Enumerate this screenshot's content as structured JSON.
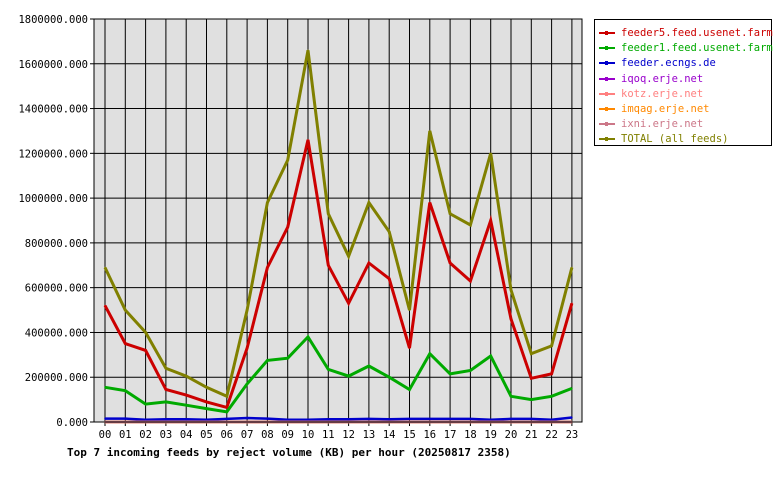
{
  "chart_data": {
    "type": "line",
    "title": "Top 7 incoming feeds by reject volume (KB) per hour (20250817 2358)",
    "categories": [
      "00",
      "01",
      "02",
      "03",
      "04",
      "05",
      "06",
      "07",
      "08",
      "09",
      "10",
      "11",
      "12",
      "13",
      "14",
      "15",
      "16",
      "17",
      "18",
      "19",
      "20",
      "21",
      "22",
      "23"
    ],
    "ylim": [
      0,
      1800000
    ],
    "yticks": [
      "0.000",
      "200000.000",
      "400000.000",
      "600000.000",
      "800000.000",
      "1000000.000",
      "1200000.000",
      "1400000.000",
      "1600000.000",
      "1800000.000"
    ],
    "grid": true,
    "legend_position": "right",
    "series": [
      {
        "name": "feeder5.feed.usenet.farm",
        "color": "#cc0000",
        "values": [
          520000,
          350000,
          320000,
          145000,
          120000,
          90000,
          65000,
          330000,
          690000,
          870000,
          1260000,
          700000,
          530000,
          710000,
          640000,
          330000,
          980000,
          710000,
          630000,
          900000,
          460000,
          195000,
          215000,
          530000
        ]
      },
      {
        "name": "feeder1.feed.usenet.farm",
        "color": "#00aa00",
        "values": [
          155000,
          140000,
          80000,
          90000,
          75000,
          60000,
          45000,
          170000,
          275000,
          285000,
          380000,
          235000,
          205000,
          250000,
          200000,
          145000,
          305000,
          215000,
          230000,
          295000,
          115000,
          100000,
          115000,
          150000
        ]
      },
      {
        "name": "feeder.ecngs.de",
        "color": "#0000cc",
        "values": [
          15000,
          15000,
          10000,
          12000,
          12000,
          10000,
          14000,
          18000,
          15000,
          10000,
          10000,
          12000,
          12000,
          14000,
          12000,
          14000,
          14000,
          14000,
          14000,
          10000,
          14000,
          14000,
          10000,
          20000
        ]
      },
      {
        "name": "iqoq.erje.net",
        "color": "#9900cc",
        "values": [
          0,
          0,
          0,
          0,
          0,
          0,
          0,
          0,
          0,
          0,
          0,
          0,
          0,
          0,
          0,
          0,
          0,
          0,
          0,
          0,
          0,
          0,
          0,
          0
        ]
      },
      {
        "name": "kotz.erje.net",
        "color": "#ff8080",
        "values": [
          0,
          0,
          0,
          0,
          0,
          0,
          0,
          0,
          0,
          0,
          0,
          0,
          0,
          0,
          0,
          0,
          0,
          0,
          0,
          0,
          0,
          0,
          0,
          0
        ]
      },
      {
        "name": "imqag.erje.net",
        "color": "#ff8800",
        "values": [
          0,
          0,
          0,
          0,
          0,
          0,
          0,
          0,
          0,
          0,
          0,
          0,
          0,
          0,
          0,
          0,
          0,
          0,
          0,
          0,
          0,
          0,
          0,
          0
        ]
      },
      {
        "name": "ixni.erje.net",
        "color": "#cc7788",
        "values": [
          0,
          0,
          0,
          0,
          0,
          0,
          0,
          0,
          0,
          0,
          0,
          0,
          0,
          0,
          0,
          0,
          0,
          0,
          0,
          0,
          0,
          0,
          0,
          0
        ]
      },
      {
        "name": "TOTAL (all feeds)",
        "color": "#808000",
        "values": [
          690000,
          500000,
          400000,
          240000,
          205000,
          155000,
          115000,
          500000,
          980000,
          1170000,
          1660000,
          930000,
          740000,
          980000,
          850000,
          500000,
          1300000,
          930000,
          880000,
          1200000,
          590000,
          305000,
          340000,
          690000
        ]
      }
    ]
  }
}
